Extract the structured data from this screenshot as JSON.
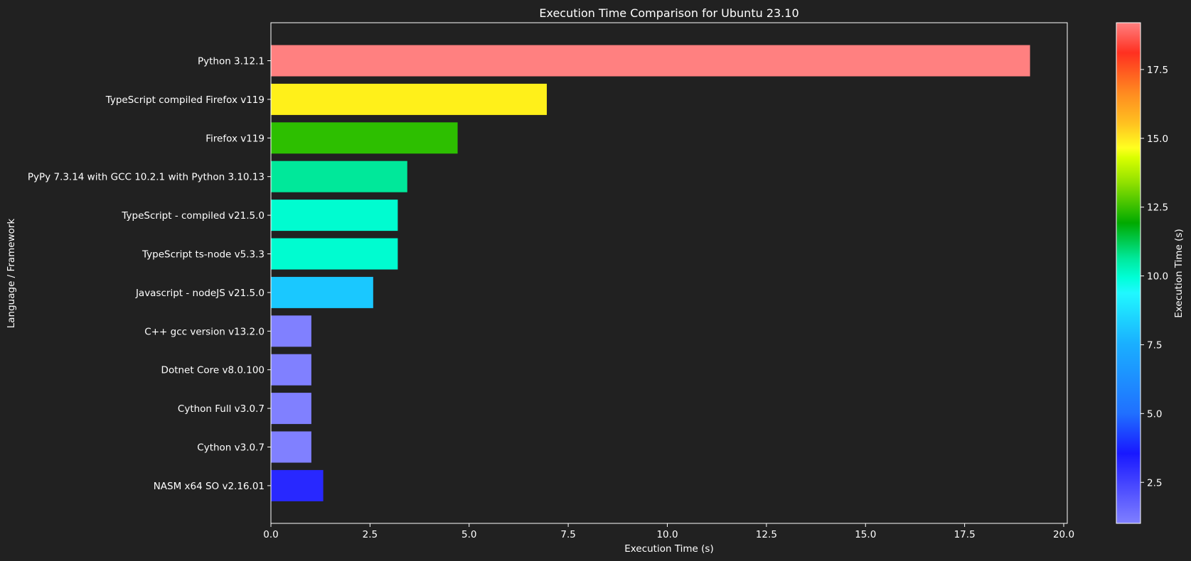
{
  "chart_data": {
    "type": "bar",
    "orientation": "horizontal",
    "title": "Execution Time Comparison for Ubuntu 23.10",
    "xlabel": "Execution Time (s)",
    "ylabel": "Language / Framework",
    "xlim": [
      0,
      20.2
    ],
    "xticks": [
      "0.0",
      "2.5",
      "5.0",
      "7.5",
      "10.0",
      "12.5",
      "15.0",
      "17.5",
      "20.0"
    ],
    "grid": false,
    "categories": [
      "Python 3.12.1",
      "TypeScript compiled Firefox v119",
      "Firefox v119",
      "PyPy 7.3.14 with GCC 10.2.1 with Python 3.10.13",
      "TypeScript - compiled v21.5.0",
      "TypeScript ts-node v5.3.3",
      "Javascript - nodeJS v21.5.0",
      "C++ gcc version v13.2.0",
      "Dotnet Core v8.0.100",
      "Cython Full v3.0.7",
      "Cython v3.0.7",
      "NASM x64 SO v2.16.01"
    ],
    "values": [
      19.15,
      6.96,
      4.71,
      3.44,
      3.2,
      3.2,
      2.58,
      1.02,
      1.02,
      1.02,
      1.02,
      1.32
    ],
    "colors": [
      "#ff8080",
      "#fff01a",
      "#2dbf00",
      "#00e89a",
      "#00fcd0",
      "#00fcd0",
      "#1ac8ff",
      "#8080ff",
      "#8080ff",
      "#8080ff",
      "#8080ff",
      "#2828ff"
    ],
    "colorbar": {
      "label": "Execution Time (s)",
      "range": [
        1.01,
        19.2
      ],
      "ticks": [
        "2.5",
        "5.0",
        "7.5",
        "10.0",
        "12.5",
        "15.0",
        "17.5"
      ]
    },
    "background": "#212121"
  }
}
